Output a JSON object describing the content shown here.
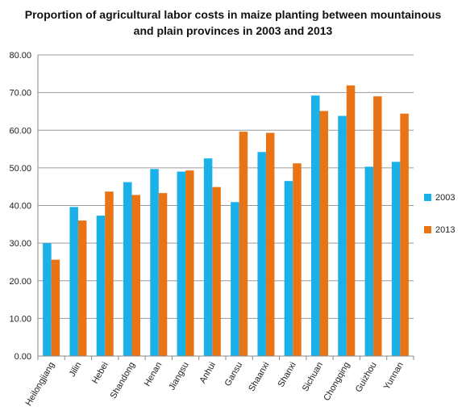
{
  "chart_data": {
    "type": "bar",
    "title_lines": [
      "Proportion of agricultural labor costs in maize planting between mountainous",
      "and plain provinces in 2003 and 2013"
    ],
    "xlabel": "",
    "ylabel": "",
    "ylim": [
      0,
      80
    ],
    "y_ticks": [
      "0.00",
      "10.00",
      "20.00",
      "30.00",
      "40.00",
      "50.00",
      "60.00",
      "70.00",
      "80.00"
    ],
    "grid": true,
    "legend_position": "right",
    "categories": [
      "Heilongjiang",
      "Jilin",
      "Hebei",
      "Shandong",
      "Henan",
      "Jiangsu",
      "Anhui",
      "Gansu",
      "Shaanxi",
      "Shanxi",
      "Sichuan",
      "Chongqing",
      "Guizhou",
      "Yunnan"
    ],
    "series": [
      {
        "name": "2003",
        "color": "#1ab0e8",
        "values": [
          30.0,
          39.6,
          37.3,
          46.2,
          49.7,
          49.0,
          52.5,
          40.9,
          54.2,
          46.5,
          69.2,
          63.8,
          50.3,
          51.6
        ]
      },
      {
        "name": "2013",
        "color": "#e87416",
        "values": [
          25.6,
          36.0,
          43.7,
          42.8,
          43.3,
          49.3,
          44.9,
          59.6,
          59.3,
          51.2,
          65.1,
          71.9,
          69.0,
          64.4
        ]
      }
    ]
  }
}
